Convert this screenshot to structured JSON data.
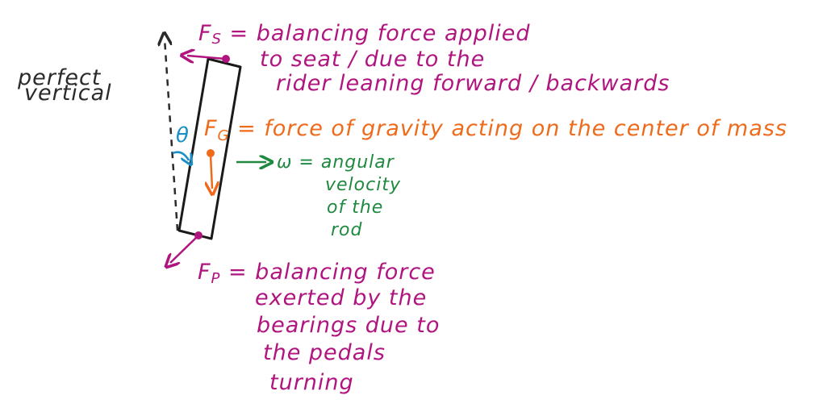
{
  "vertical_label": [
    "perfect",
    "vertical"
  ],
  "theta": "θ",
  "fs": {
    "symbol": "F",
    "subscript": "S",
    "eq": "= balancing force applied",
    "lines": [
      "to seat / due to the",
      "rider leaning forward / backwards"
    ]
  },
  "fg": {
    "symbol": "F",
    "subscript": "G",
    "eq": "= force of gravity acting on the center of mass"
  },
  "omega": {
    "eq": "ω = angular",
    "lines": [
      "velocity",
      "of the",
      "rod"
    ]
  },
  "fp": {
    "symbol": "F",
    "subscript": "P",
    "eq": "= balancing force",
    "lines": [
      "exerted by the",
      "bearings due to",
      "the pedals",
      "turning"
    ]
  },
  "colors": {
    "ink": "#2b2b2b",
    "magenta": "#b0157f",
    "orange": "#ee6b1c",
    "green": "#1f8a3f",
    "blue": "#1a8fc7"
  }
}
